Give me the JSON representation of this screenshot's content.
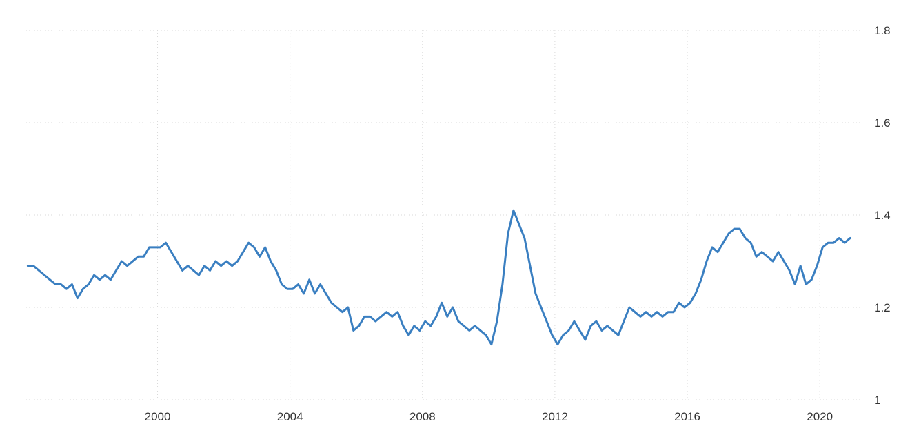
{
  "chart_data": {
    "type": "line",
    "title": "",
    "xlabel": "",
    "ylabel": "",
    "x_axis": {
      "ticks": [
        "2000",
        "2004",
        "2008",
        "2012",
        "2016",
        "2020"
      ],
      "range": [
        "1996-02",
        "2020-12"
      ]
    },
    "y_axis": {
      "ticks": [
        "1",
        "1.2",
        "1.4",
        "1.6",
        "1.8"
      ],
      "range": [
        1.0,
        1.8
      ],
      "position": "right"
    },
    "grid": true,
    "legend": "none",
    "series": [
      {
        "color": "#3a7fc1",
        "points": [
          [
            "1996-02",
            1.29
          ],
          [
            "1996-04",
            1.29
          ],
          [
            "1996-06",
            1.28
          ],
          [
            "1996-08",
            1.27
          ],
          [
            "1996-10",
            1.26
          ],
          [
            "1996-12",
            1.25
          ],
          [
            "1997-02",
            1.25
          ],
          [
            "1997-04",
            1.24
          ],
          [
            "1997-06",
            1.25
          ],
          [
            "1997-08",
            1.22
          ],
          [
            "1997-10",
            1.24
          ],
          [
            "1997-12",
            1.25
          ],
          [
            "1998-02",
            1.27
          ],
          [
            "1998-04",
            1.26
          ],
          [
            "1998-06",
            1.27
          ],
          [
            "1998-08",
            1.26
          ],
          [
            "1998-10",
            1.28
          ],
          [
            "1998-12",
            1.3
          ],
          [
            "1999-02",
            1.29
          ],
          [
            "1999-04",
            1.3
          ],
          [
            "1999-06",
            1.31
          ],
          [
            "1999-08",
            1.31
          ],
          [
            "1999-10",
            1.33
          ],
          [
            "1999-12",
            1.33
          ],
          [
            "2000-02",
            1.33
          ],
          [
            "2000-04",
            1.34
          ],
          [
            "2000-06",
            1.32
          ],
          [
            "2000-08",
            1.3
          ],
          [
            "2000-10",
            1.28
          ],
          [
            "2000-12",
            1.29
          ],
          [
            "2001-02",
            1.28
          ],
          [
            "2001-04",
            1.27
          ],
          [
            "2001-06",
            1.29
          ],
          [
            "2001-08",
            1.28
          ],
          [
            "2001-10",
            1.3
          ],
          [
            "2001-12",
            1.29
          ],
          [
            "2002-02",
            1.3
          ],
          [
            "2002-04",
            1.29
          ],
          [
            "2002-06",
            1.3
          ],
          [
            "2002-08",
            1.32
          ],
          [
            "2002-10",
            1.34
          ],
          [
            "2002-12",
            1.33
          ],
          [
            "2003-02",
            1.31
          ],
          [
            "2003-04",
            1.33
          ],
          [
            "2003-06",
            1.3
          ],
          [
            "2003-08",
            1.28
          ],
          [
            "2003-10",
            1.25
          ],
          [
            "2003-12",
            1.24
          ],
          [
            "2004-02",
            1.24
          ],
          [
            "2004-04",
            1.25
          ],
          [
            "2004-06",
            1.23
          ],
          [
            "2004-08",
            1.26
          ],
          [
            "2004-10",
            1.23
          ],
          [
            "2004-12",
            1.25
          ],
          [
            "2005-02",
            1.23
          ],
          [
            "2005-04",
            1.21
          ],
          [
            "2005-06",
            1.2
          ],
          [
            "2005-08",
            1.19
          ],
          [
            "2005-10",
            1.2
          ],
          [
            "2005-12",
            1.15
          ],
          [
            "2006-02",
            1.16
          ],
          [
            "2006-04",
            1.18
          ],
          [
            "2006-06",
            1.18
          ],
          [
            "2006-08",
            1.17
          ],
          [
            "2006-10",
            1.18
          ],
          [
            "2006-12",
            1.19
          ],
          [
            "2007-02",
            1.18
          ],
          [
            "2007-04",
            1.19
          ],
          [
            "2007-06",
            1.16
          ],
          [
            "2007-08",
            1.14
          ],
          [
            "2007-10",
            1.16
          ],
          [
            "2007-12",
            1.15
          ],
          [
            "2008-02",
            1.17
          ],
          [
            "2008-04",
            1.16
          ],
          [
            "2008-06",
            1.18
          ],
          [
            "2008-08",
            1.21
          ],
          [
            "2008-10",
            1.18
          ],
          [
            "2008-12",
            1.2
          ],
          [
            "2009-02",
            1.17
          ],
          [
            "2009-04",
            1.16
          ],
          [
            "2009-06",
            1.15
          ],
          [
            "2009-08",
            1.16
          ],
          [
            "2009-10",
            1.15
          ],
          [
            "2009-12",
            1.14
          ],
          [
            "2010-02",
            1.12
          ],
          [
            "2010-04",
            1.17
          ],
          [
            "2010-06",
            1.25
          ],
          [
            "2010-08",
            1.36
          ],
          [
            "2010-10",
            1.41
          ],
          [
            "2010-12",
            1.38
          ],
          [
            "2011-02",
            1.35
          ],
          [
            "2011-04",
            1.29
          ],
          [
            "2011-06",
            1.23
          ],
          [
            "2011-08",
            1.2
          ],
          [
            "2011-10",
            1.17
          ],
          [
            "2011-12",
            1.14
          ],
          [
            "2012-02",
            1.12
          ],
          [
            "2012-04",
            1.14
          ],
          [
            "2012-06",
            1.15
          ],
          [
            "2012-08",
            1.17
          ],
          [
            "2012-10",
            1.15
          ],
          [
            "2012-12",
            1.13
          ],
          [
            "2013-02",
            1.16
          ],
          [
            "2013-04",
            1.17
          ],
          [
            "2013-06",
            1.15
          ],
          [
            "2013-08",
            1.16
          ],
          [
            "2013-10",
            1.15
          ],
          [
            "2013-12",
            1.14
          ],
          [
            "2014-02",
            1.17
          ],
          [
            "2014-04",
            1.2
          ],
          [
            "2014-06",
            1.19
          ],
          [
            "2014-08",
            1.18
          ],
          [
            "2014-10",
            1.19
          ],
          [
            "2014-12",
            1.18
          ],
          [
            "2015-02",
            1.19
          ],
          [
            "2015-04",
            1.18
          ],
          [
            "2015-06",
            1.19
          ],
          [
            "2015-08",
            1.19
          ],
          [
            "2015-10",
            1.21
          ],
          [
            "2015-12",
            1.2
          ],
          [
            "2016-02",
            1.21
          ],
          [
            "2016-04",
            1.23
          ],
          [
            "2016-06",
            1.26
          ],
          [
            "2016-08",
            1.3
          ],
          [
            "2016-10",
            1.33
          ],
          [
            "2016-12",
            1.32
          ],
          [
            "2017-02",
            1.34
          ],
          [
            "2017-04",
            1.36
          ],
          [
            "2017-06",
            1.37
          ],
          [
            "2017-08",
            1.37
          ],
          [
            "2017-10",
            1.35
          ],
          [
            "2017-12",
            1.34
          ],
          [
            "2018-02",
            1.31
          ],
          [
            "2018-04",
            1.32
          ],
          [
            "2018-06",
            1.31
          ],
          [
            "2018-08",
            1.3
          ],
          [
            "2018-10",
            1.32
          ],
          [
            "2018-12",
            1.3
          ],
          [
            "2019-02",
            1.28
          ],
          [
            "2019-04",
            1.25
          ],
          [
            "2019-06",
            1.29
          ],
          [
            "2019-08",
            1.25
          ],
          [
            "2019-10",
            1.26
          ],
          [
            "2019-12",
            1.29
          ],
          [
            "2020-02",
            1.33
          ],
          [
            "2020-04",
            1.34
          ],
          [
            "2020-06",
            1.34
          ],
          [
            "2020-08",
            1.35
          ],
          [
            "2020-10",
            1.34
          ],
          [
            "2020-12",
            1.35
          ]
        ]
      }
    ]
  }
}
